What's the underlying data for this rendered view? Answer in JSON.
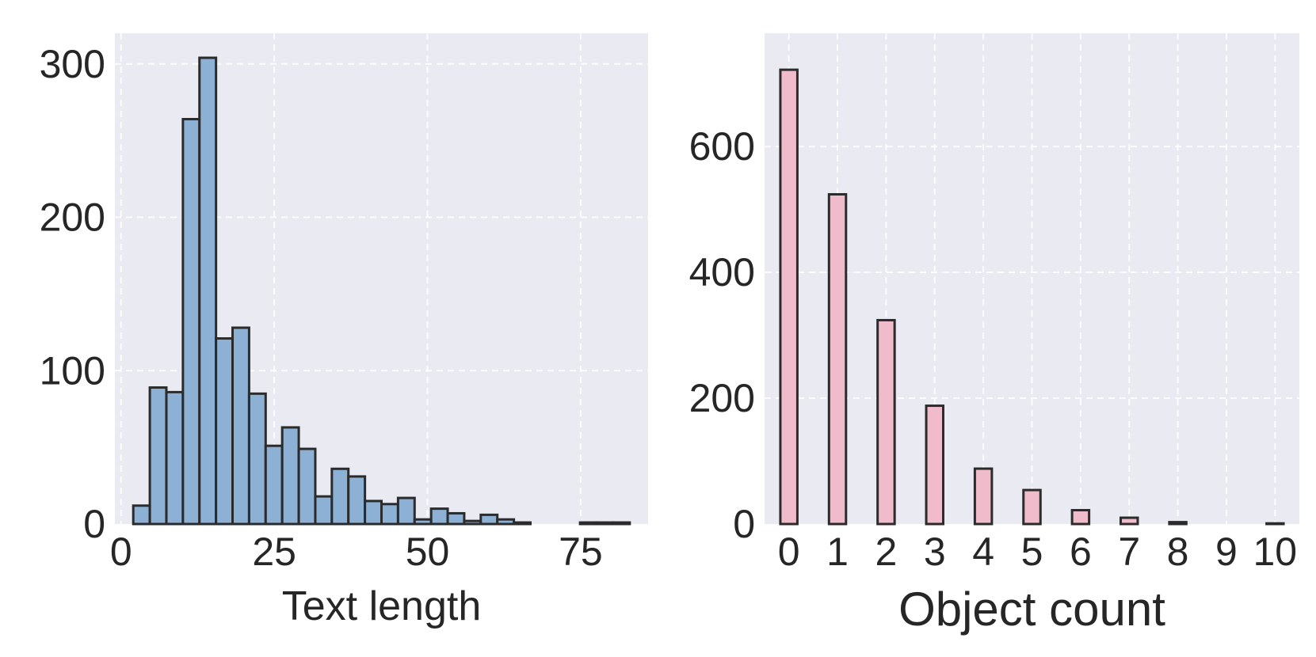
{
  "colors": {
    "panel_background": "#e9eaf2",
    "grid": "#ffffff",
    "bar_edge": "#2b2b2b",
    "left_bar_fill": "#8db1d5",
    "right_bar_fill": "#f0bccb"
  },
  "chart_data": [
    {
      "type": "bar",
      "kind": "histogram",
      "title": "",
      "xlabel": "Text length",
      "ylabel": "",
      "xlim": [
        -1,
        86
      ],
      "ylim": [
        0,
        320
      ],
      "xticks": [
        0,
        25,
        50,
        75
      ],
      "xtick_labels": [
        "0",
        "25",
        "50",
        "75"
      ],
      "yticks": [
        0,
        100,
        200,
        300
      ],
      "ytick_labels": [
        "0",
        "100",
        "200",
        "300"
      ],
      "grid": true,
      "bin_edges": [
        2,
        4.7,
        7.4,
        10.1,
        12.8,
        15.5,
        18.2,
        20.9,
        23.6,
        26.3,
        29.0,
        31.7,
        34.4,
        37.1,
        39.8,
        42.5,
        45.2,
        47.9,
        50.6,
        53.3,
        56.0,
        58.7,
        61.4,
        64.1,
        66.8,
        69.5,
        72.2,
        74.9,
        77.6,
        80.3,
        83.0
      ],
      "values": [
        12,
        89,
        86,
        264,
        304,
        121,
        128,
        85,
        51,
        63,
        49,
        18,
        36,
        31,
        15,
        13,
        17,
        3,
        10,
        7,
        2,
        6,
        3,
        1,
        0,
        0,
        0,
        1,
        1,
        1
      ]
    },
    {
      "type": "bar",
      "kind": "histogram",
      "title": "",
      "xlabel": "Object count",
      "ylabel": "",
      "xlim": [
        -0.5,
        10.5
      ],
      "ylim": [
        0,
        780
      ],
      "categories": [
        "0",
        "1",
        "2",
        "3",
        "4",
        "5",
        "6",
        "7",
        "8",
        "9",
        "10"
      ],
      "xticks": [
        0,
        1,
        2,
        3,
        4,
        5,
        6,
        7,
        8,
        9,
        10
      ],
      "values": [
        722,
        524,
        324,
        188,
        88,
        54,
        22,
        10,
        3,
        0,
        1
      ],
      "yticks": [
        0,
        200,
        400,
        600
      ],
      "ytick_labels": [
        "0",
        "200",
        "400",
        "600"
      ],
      "grid": true
    }
  ]
}
